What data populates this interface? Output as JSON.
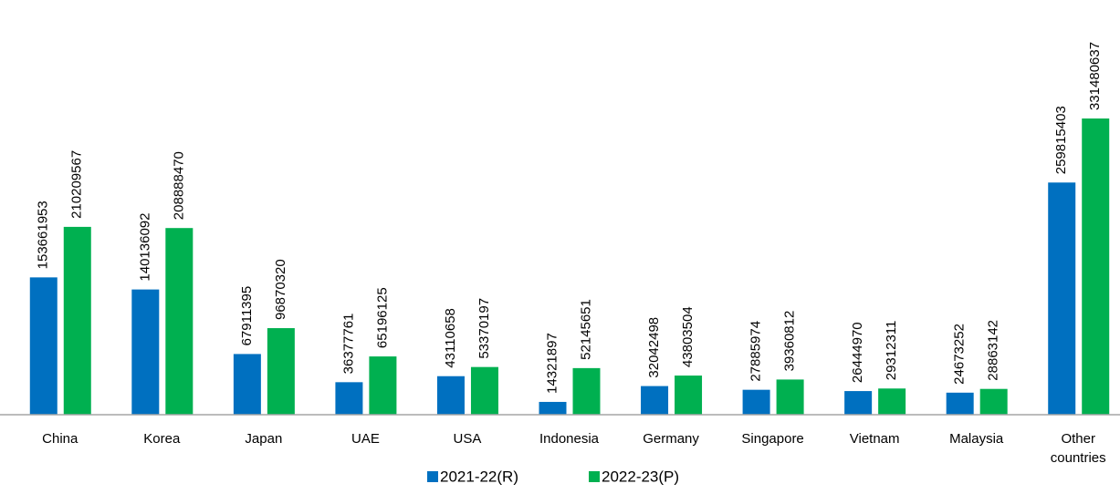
{
  "chart_data": {
    "type": "bar",
    "categories": [
      "China",
      "Korea",
      "Japan",
      "UAE",
      "USA",
      "Indonesia",
      "Germany",
      "Singapore",
      "Vietnam",
      "Malaysia",
      "Other countries"
    ],
    "series": [
      {
        "name": "2021-22(R)",
        "color": "#0070c0",
        "values": [
          153661953,
          140136092,
          67911395,
          36377761,
          43110658,
          14321897,
          32042498,
          27885974,
          26444970,
          24673252,
          259815403
        ]
      },
      {
        "name": "2022-23(P)",
        "color": "#00b050",
        "values": [
          210209567,
          208888470,
          96870320,
          65196125,
          53370197,
          52145651,
          43803504,
          39360812,
          29312311,
          28863142,
          331480637
        ]
      }
    ],
    "ylim": [
      0,
      460000000
    ],
    "data_labels": true,
    "legend": "bottom"
  }
}
